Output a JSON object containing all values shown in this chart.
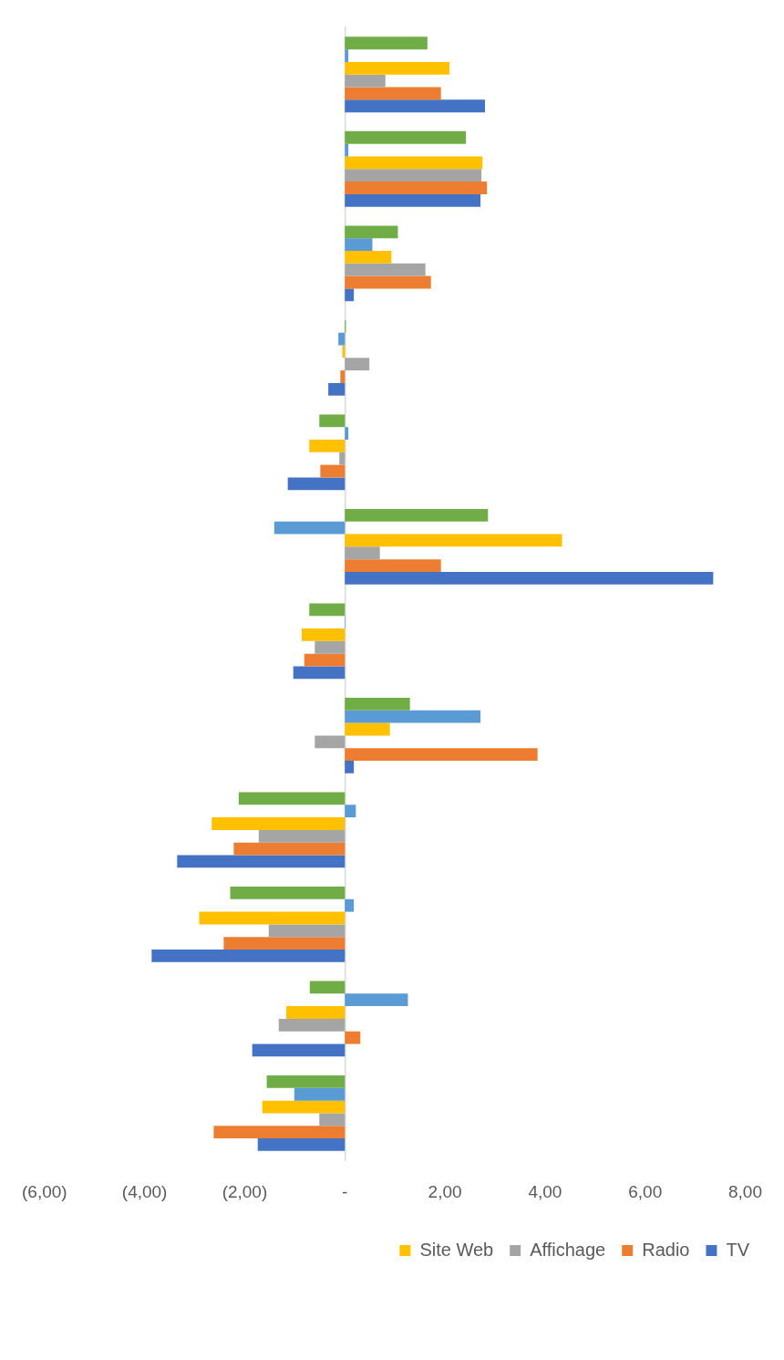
{
  "chart_data": {
    "type": "bar",
    "orientation": "horizontal",
    "categories": [
      null,
      null,
      null,
      null,
      null,
      null,
      null,
      null,
      null,
      null,
      null,
      null
    ],
    "xlim": [
      -6,
      8
    ],
    "xticks": [
      {
        "value": -6,
        "label": "(6,00)"
      },
      {
        "value": -4,
        "label": "(4,00)"
      },
      {
        "value": -2,
        "label": "(2,00)"
      },
      {
        "value": 0,
        "label": "-"
      },
      {
        "value": 2,
        "label": "2,00"
      },
      {
        "value": 4,
        "label": "4,00"
      },
      {
        "value": 6,
        "label": "6,00"
      },
      {
        "value": 8,
        "label": "8,00"
      }
    ],
    "tick_labels": "x",
    "legend": "bottom",
    "series": [
      {
        "color": "#70ad47",
        "values": [
          1.65,
          2.42,
          1.06,
          0.02,
          -0.51,
          2.86,
          -0.71,
          1.3,
          -2.12,
          -2.29,
          -0.7,
          -1.56
        ]
      },
      {
        "color": "#5b9bd5",
        "values": [
          0.07,
          0.07,
          0.55,
          -0.13,
          0.07,
          -1.41,
          0.01,
          2.71,
          0.22,
          0.18,
          1.26,
          -1.01
        ]
      },
      {
        "name": "Site Web",
        "color": "#ffc000",
        "values": [
          2.09,
          2.75,
          0.93,
          -0.05,
          -0.71,
          4.34,
          -0.86,
          0.9,
          -2.66,
          -2.91,
          -1.17,
          -1.65
        ]
      },
      {
        "name": "Affichage",
        "color": "#a5a5a5",
        "values": [
          0.81,
          2.73,
          1.61,
          0.49,
          -0.11,
          0.7,
          -0.6,
          -0.6,
          -1.72,
          -1.52,
          -1.32,
          -0.51
        ]
      },
      {
        "name": "Radio",
        "color": "#ed7d31",
        "values": [
          1.92,
          2.84,
          1.72,
          -0.09,
          -0.49,
          1.92,
          -0.81,
          3.85,
          -2.22,
          -2.42,
          0.31,
          -2.62
        ]
      },
      {
        "name": "TV",
        "color": "#4472c4",
        "values": [
          2.8,
          2.71,
          0.18,
          -0.33,
          -1.14,
          7.36,
          -1.03,
          0.18,
          -3.35,
          -3.86,
          -1.85,
          -1.74
        ]
      }
    ]
  }
}
